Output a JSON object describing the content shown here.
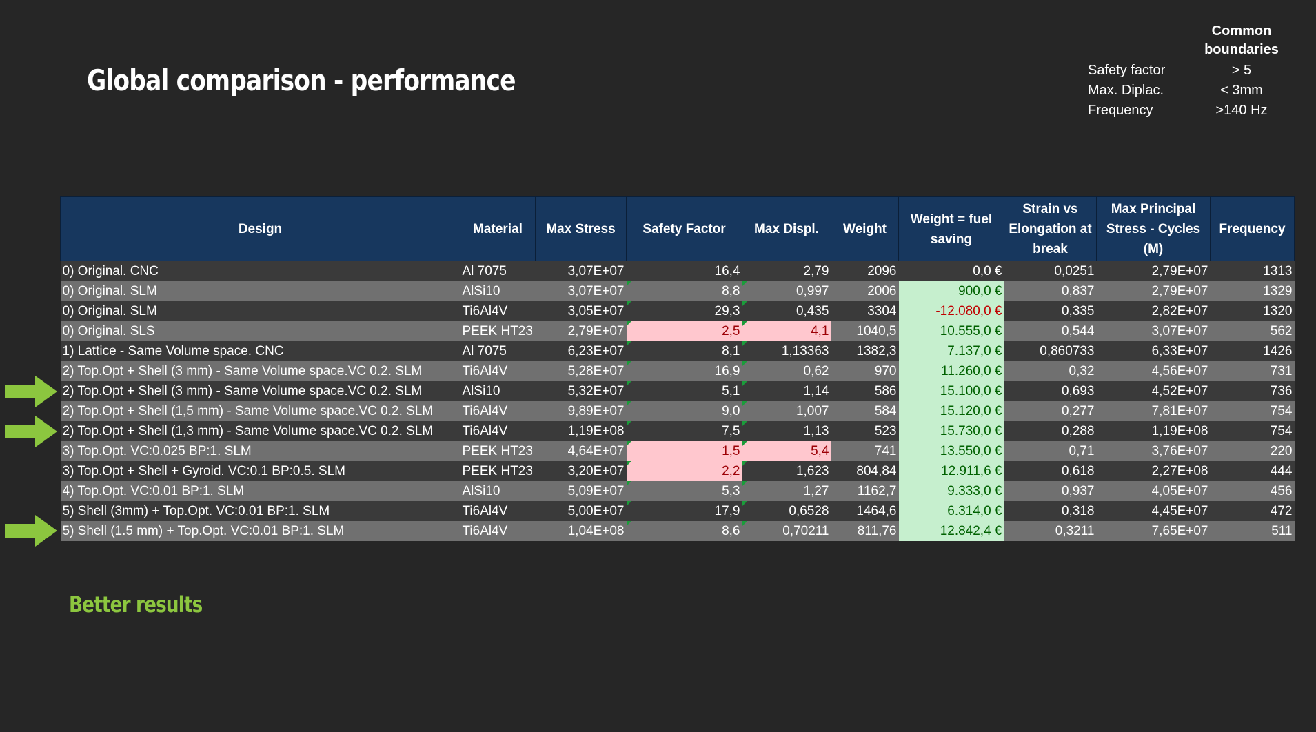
{
  "title": "Global comparison - performance",
  "boundaries": {
    "header": "Common boundaries",
    "rows": [
      {
        "label": "Safety factor",
        "value": "> 5"
      },
      {
        "label": "Max. Diplac.",
        "value": "< 3mm"
      },
      {
        "label": "Frequency",
        "value": ">140 Hz"
      }
    ]
  },
  "table": {
    "columns": [
      "Design",
      "Material",
      "Max Stress",
      "Safety Factor",
      "Max Displ.",
      "Weight",
      "Weight = fuel saving",
      "Strain vs Elongation at break",
      "Max Principal Stress - Cycles (M)",
      "Frequency"
    ],
    "rows": [
      [
        "0) Original. CNC",
        "Al 7075",
        "3,07E+07",
        "16,4",
        "2,79",
        "2096",
        "0,0 €",
        "0,0251",
        "2,79E+07",
        "1313"
      ],
      [
        "0) Original. SLM",
        "AlSi10",
        "3,07E+07",
        "8,8",
        "0,997",
        "2006",
        "900,0 €",
        "0,837",
        "2,79E+07",
        "1329"
      ],
      [
        "0) Original. SLM",
        "Ti6Al4V",
        "3,05E+07",
        "29,3",
        "0,435",
        "3304",
        "-12.080,0 €",
        "0,335",
        "2,82E+07",
        "1320"
      ],
      [
        "0) Original. SLS",
        "PEEK HT23",
        "2,79E+07",
        "2,5",
        "4,1",
        "1040,5",
        "10.555,0 €",
        "0,544",
        "3,07E+07",
        "562"
      ],
      [
        "1) Lattice - Same Volume space. CNC",
        "Al 7075",
        "6,23E+07",
        "8,1",
        "1,13363",
        "1382,3",
        "7.137,0 €",
        "0,860733",
        "6,33E+07",
        "1426"
      ],
      [
        "2) Top.Opt + Shell (3 mm) - Same Volume space.VC 0.2. SLM",
        "Ti6Al4V",
        "5,28E+07",
        "16,9",
        "0,62",
        "970",
        "11.260,0 €",
        "0,32",
        "4,56E+07",
        "731"
      ],
      [
        "2) Top.Opt + Shell (3 mm) - Same Volume space.VC 0.2. SLM",
        "AlSi10",
        "5,32E+07",
        "5,1",
        "1,14",
        "586",
        "15.100,0 €",
        "0,693",
        "4,52E+07",
        "736"
      ],
      [
        "2) Top.Opt + Shell (1,5 mm) - Same Volume space.VC 0.2. SLM",
        "Ti6Al4V",
        "9,89E+07",
        "9,0",
        "1,007",
        "584",
        "15.120,0 €",
        "0,277",
        "7,81E+07",
        "754"
      ],
      [
        "2) Top.Opt + Shell (1,3 mm) - Same Volume space.VC 0.2. SLM",
        "Ti6Al4V",
        "1,19E+08",
        "7,5",
        "1,13",
        "523",
        "15.730,0 €",
        "0,288",
        "1,19E+08",
        "754"
      ],
      [
        "3) Top.Opt. VC:0.025 BP:1. SLM",
        "PEEK HT23",
        "4,64E+07",
        "1,5",
        "5,4",
        "741",
        "13.550,0 €",
        "0,71",
        "3,76E+07",
        "220"
      ],
      [
        "3) Top.Opt + Shell + Gyroid. VC:0.1 BP:0.5. SLM",
        "PEEK HT23",
        "3,20E+07",
        "2,2",
        "1,623",
        "804,84",
        "12.911,6 €",
        "0,618",
        "2,27E+08",
        "444"
      ],
      [
        "4) Top.Opt. VC:0.01 BP:1. SLM",
        "AlSi10",
        "5,09E+07",
        "5,3",
        "1,27",
        "1162,7",
        "9.333,0 €",
        "0,937",
        "4,05E+07",
        "456"
      ],
      [
        "5) Shell (3mm) + Top.Opt. VC:0.01 BP:1. SLM",
        "Ti6Al4V",
        "5,00E+07",
        "17,9",
        "0,6528",
        "1464,6",
        "6.314,0 €",
        "0,318",
        "4,45E+07",
        "472"
      ],
      [
        "5) Shell (1.5 mm) + Top.Opt. VC:0.01 BP:1. SLM",
        "Ti6Al4V",
        "1,04E+08",
        "8,6",
        "0,70211",
        "811,76",
        "12.842,4 €",
        "0,3211",
        "7,65E+07",
        "511"
      ]
    ]
  },
  "legend": "Better results",
  "colors": {
    "background": "#262626",
    "header": "#17375e",
    "arrow": "#8cc63f",
    "good_fill": "#c6efce",
    "bad_fill": "#ffc7ce"
  }
}
